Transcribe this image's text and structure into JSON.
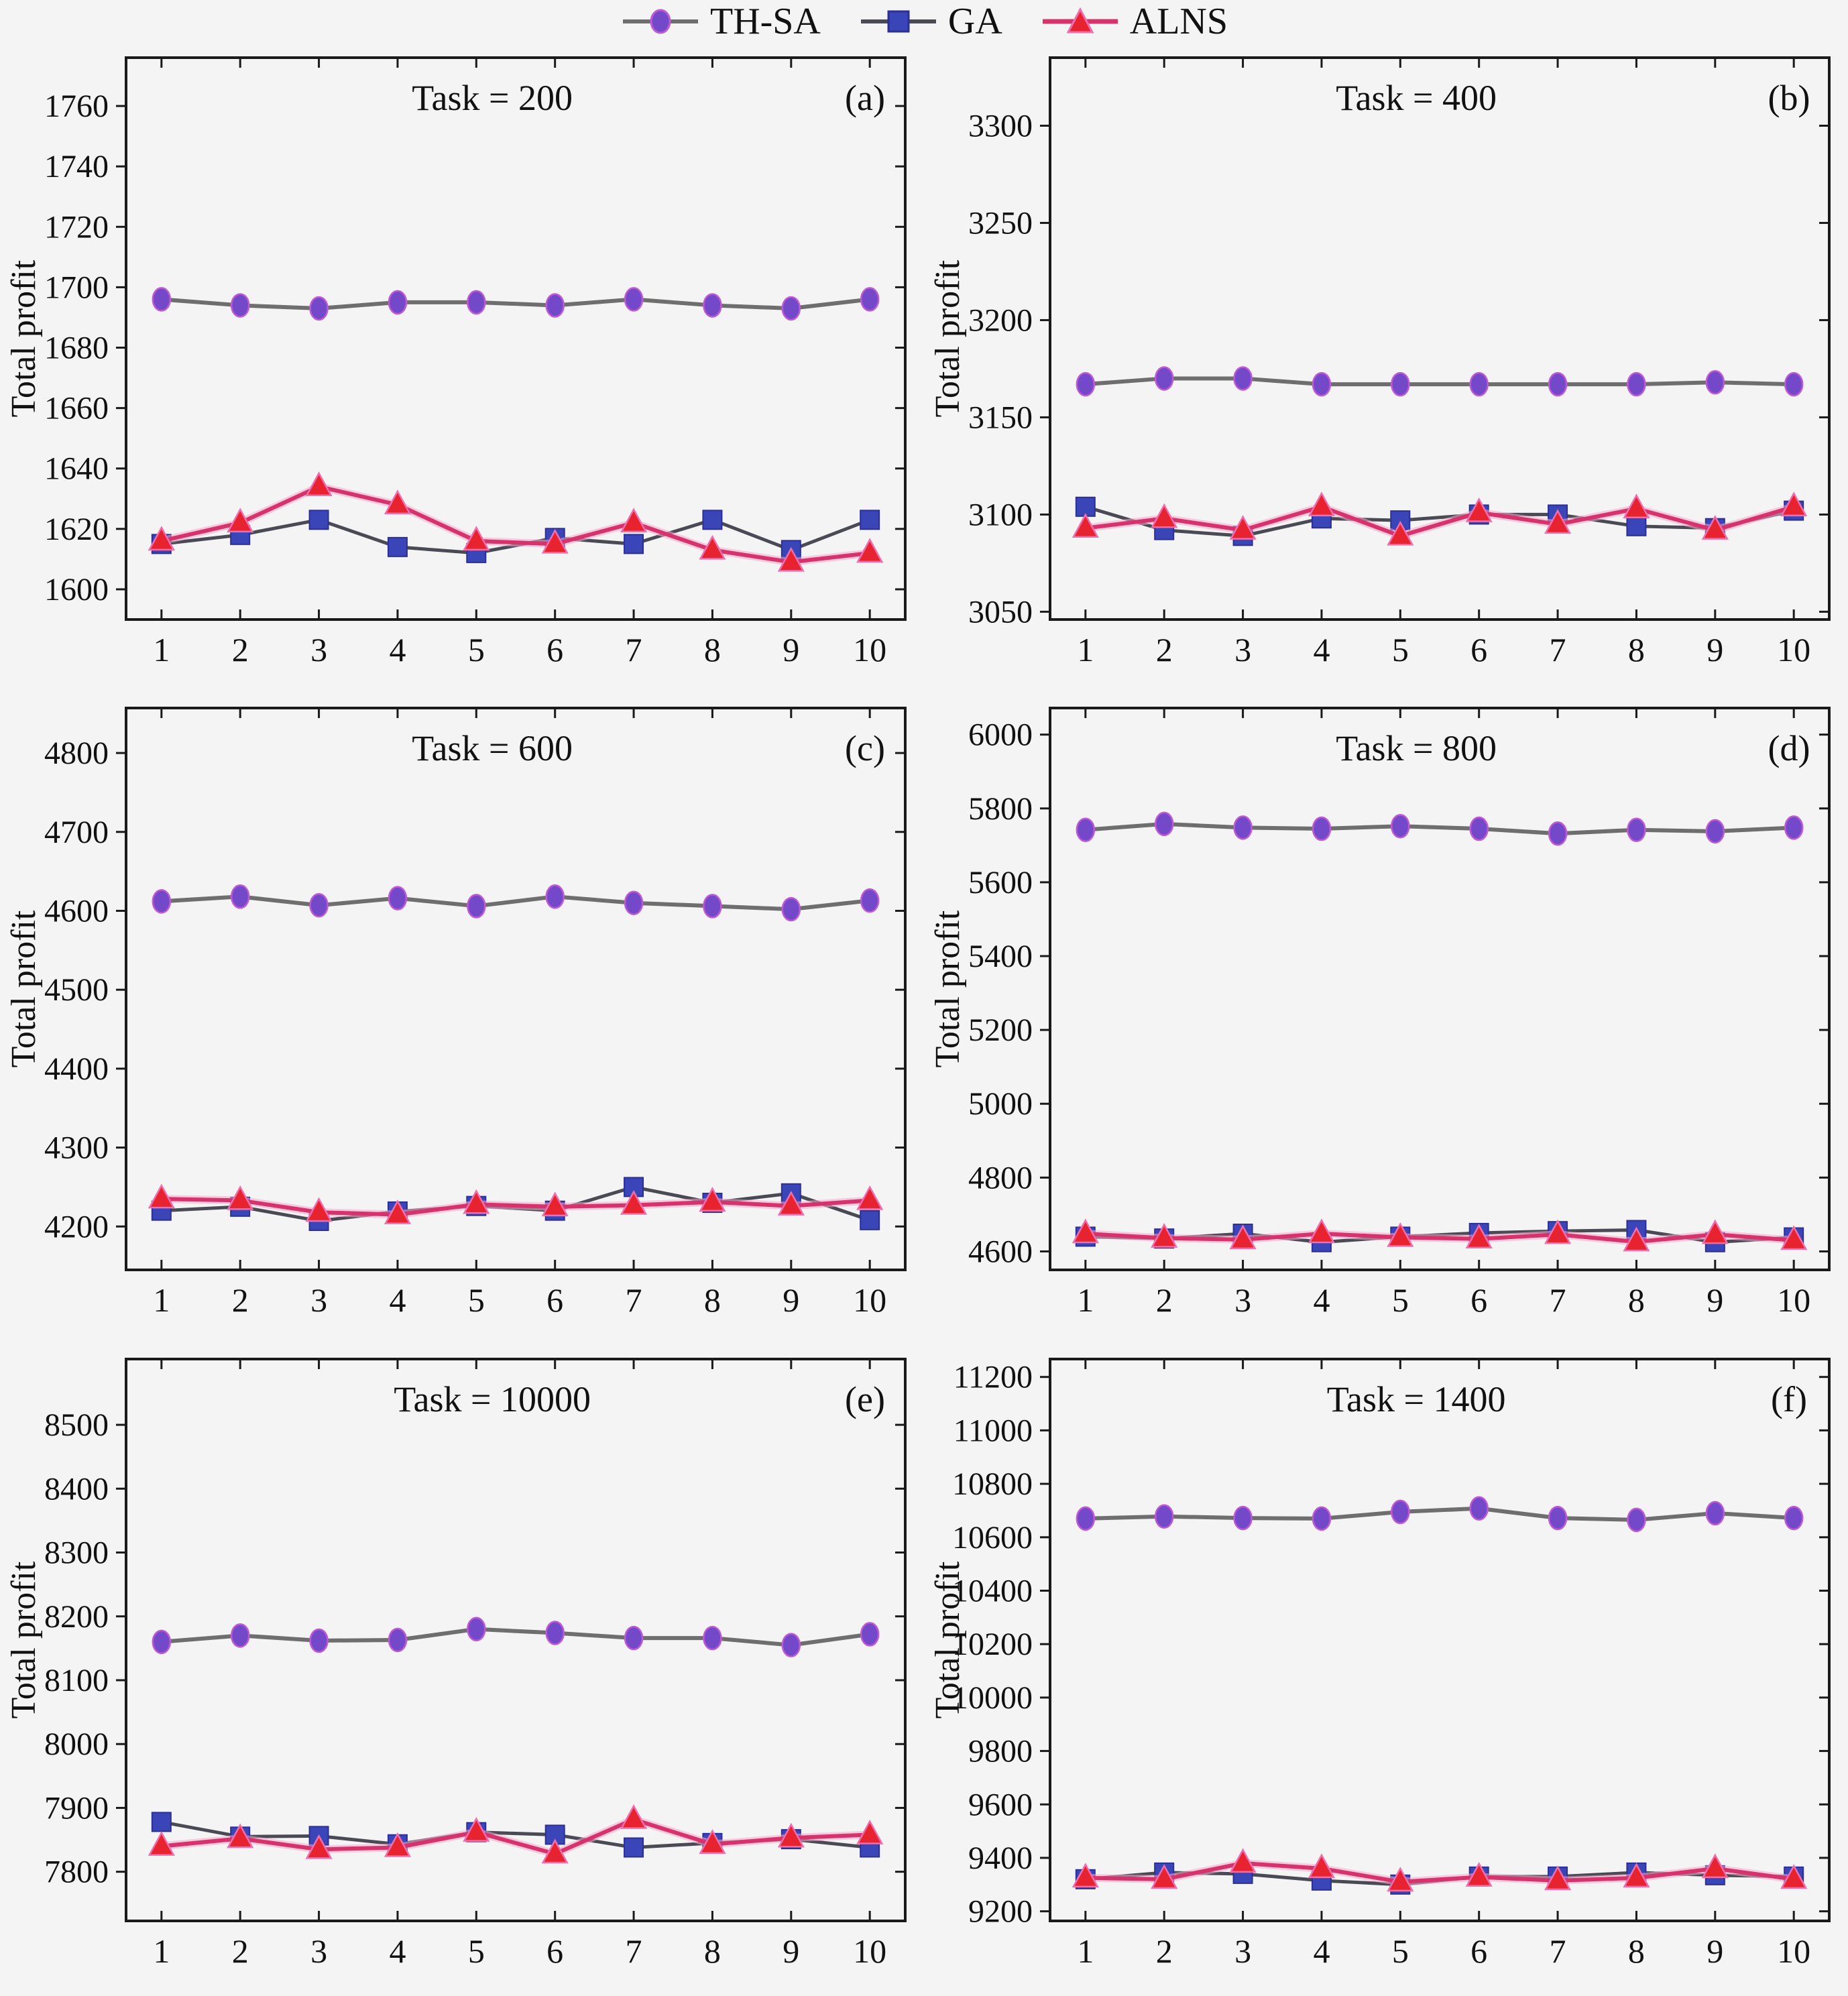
{
  "figure": {
    "background": "#f5f4f5"
  },
  "legend": {
    "items": [
      {
        "label": "TH-SA",
        "marker": "circle"
      },
      {
        "label": "GA",
        "marker": "square"
      },
      {
        "label": "ALNS",
        "marker": "triangle"
      }
    ]
  },
  "colors": {
    "thsa_line": "#6e6e6e",
    "thsa_fill": "#7348c9",
    "thsa_edge": "#c05ad2",
    "ga_line": "#4a4a55",
    "ga_fill": "#3a46b8",
    "ga_edge": "#2b2f96",
    "alns_line": "#d6336c",
    "alns_glow": "#f8a9cc",
    "alns_fill": "#e6232e",
    "alns_edge": "#ef6fae",
    "spine": "#1a1a1a",
    "text": "#111111"
  },
  "chart_data": [
    {
      "type": "line",
      "panel_label": "(a)",
      "title": "Task = 200",
      "ylabel": "Total profit",
      "xlim": [
        0.55,
        10.45
      ],
      "ylim": [
        1590,
        1776
      ],
      "yticks": [
        1600,
        1620,
        1640,
        1660,
        1680,
        1700,
        1720,
        1740,
        1760
      ],
      "xticks": [
        1,
        2,
        3,
        4,
        5,
        6,
        7,
        8,
        9,
        10
      ],
      "x": [
        1,
        2,
        3,
        4,
        5,
        6,
        7,
        8,
        9,
        10
      ],
      "grid": false,
      "series": [
        {
          "name": "TH-SA",
          "marker": "circle",
          "values": [
            1696,
            1694,
            1693,
            1695,
            1695,
            1694,
            1696,
            1694,
            1693,
            1696
          ]
        },
        {
          "name": "GA",
          "marker": "square",
          "values": [
            1615,
            1618,
            1623,
            1614,
            1612,
            1617,
            1615,
            1623,
            1613,
            1623
          ]
        },
        {
          "name": "ALNS",
          "marker": "triangle",
          "values": [
            1616,
            1622,
            1634,
            1628,
            1616,
            1615,
            1622,
            1613,
            1609,
            1612
          ]
        }
      ]
    },
    {
      "type": "line",
      "panel_label": "(b)",
      "title": "Task = 400",
      "ylabel": "Total profit",
      "xlim": [
        0.55,
        10.45
      ],
      "ylim": [
        3046,
        3335
      ],
      "yticks": [
        3050,
        3100,
        3150,
        3200,
        3250,
        3300
      ],
      "xticks": [
        1,
        2,
        3,
        4,
        5,
        6,
        7,
        8,
        9,
        10
      ],
      "x": [
        1,
        2,
        3,
        4,
        5,
        6,
        7,
        8,
        9,
        10
      ],
      "grid": false,
      "series": [
        {
          "name": "TH-SA",
          "marker": "circle",
          "values": [
            3167,
            3170,
            3170,
            3167,
            3167,
            3167,
            3167,
            3167,
            3168,
            3167
          ]
        },
        {
          "name": "GA",
          "marker": "square",
          "values": [
            3104,
            3092,
            3089,
            3098,
            3097,
            3100,
            3100,
            3094,
            3093,
            3102
          ]
        },
        {
          "name": "ALNS",
          "marker": "triangle",
          "values": [
            3093,
            3098,
            3092,
            3104,
            3089,
            3101,
            3095,
            3103,
            3092,
            3104
          ]
        }
      ]
    },
    {
      "type": "line",
      "panel_label": "(c)",
      "title": "Task = 600",
      "ylabel": "Total profit",
      "xlim": [
        0.55,
        10.45
      ],
      "ylim": [
        4145,
        4857
      ],
      "yticks": [
        4200,
        4300,
        4400,
        4500,
        4600,
        4700,
        4800
      ],
      "xticks": [
        1,
        2,
        3,
        4,
        5,
        6,
        7,
        8,
        9,
        10
      ],
      "x": [
        1,
        2,
        3,
        4,
        5,
        6,
        7,
        8,
        9,
        10
      ],
      "grid": false,
      "series": [
        {
          "name": "TH-SA",
          "marker": "circle",
          "values": [
            4612,
            4618,
            4607,
            4616,
            4606,
            4618,
            4610,
            4606,
            4602,
            4613
          ]
        },
        {
          "name": "GA",
          "marker": "square",
          "values": [
            4220,
            4225,
            4207,
            4219,
            4226,
            4220,
            4250,
            4230,
            4242,
            4208
          ]
        },
        {
          "name": "ALNS",
          "marker": "triangle",
          "values": [
            4235,
            4233,
            4218,
            4215,
            4228,
            4225,
            4227,
            4231,
            4226,
            4233
          ]
        }
      ]
    },
    {
      "type": "line",
      "panel_label": "(d)",
      "title": "Task = 800",
      "ylabel": "Total profit",
      "xlim": [
        0.55,
        10.45
      ],
      "ylim": [
        4550,
        6072
      ],
      "yticks": [
        4600,
        4800,
        5000,
        5200,
        5400,
        5600,
        5800,
        6000
      ],
      "xticks": [
        1,
        2,
        3,
        4,
        5,
        6,
        7,
        8,
        9,
        10
      ],
      "x": [
        1,
        2,
        3,
        4,
        5,
        6,
        7,
        8,
        9,
        10
      ],
      "grid": false,
      "series": [
        {
          "name": "TH-SA",
          "marker": "circle",
          "values": [
            5742,
            5758,
            5748,
            5745,
            5752,
            5745,
            5732,
            5742,
            5738,
            5748
          ]
        },
        {
          "name": "GA",
          "marker": "square",
          "values": [
            4640,
            4635,
            4648,
            4625,
            4640,
            4650,
            4655,
            4658,
            4625,
            4638
          ]
        },
        {
          "name": "ALNS",
          "marker": "triangle",
          "values": [
            4648,
            4636,
            4632,
            4648,
            4638,
            4634,
            4646,
            4626,
            4646,
            4630
          ]
        }
      ]
    },
    {
      "type": "line",
      "panel_label": "(e)",
      "title": "Task = 10000",
      "ylabel": "Total profit",
      "xlim": [
        0.55,
        10.45
      ],
      "ylim": [
        7723,
        8603
      ],
      "yticks": [
        7800,
        7900,
        8000,
        8100,
        8200,
        8300,
        8400,
        8500
      ],
      "xticks": [
        1,
        2,
        3,
        4,
        5,
        6,
        7,
        8,
        9,
        10
      ],
      "x": [
        1,
        2,
        3,
        4,
        5,
        6,
        7,
        8,
        9,
        10
      ],
      "grid": false,
      "series": [
        {
          "name": "TH-SA",
          "marker": "circle",
          "values": [
            8160,
            8170,
            8162,
            8163,
            8180,
            8174,
            8166,
            8166,
            8155,
            8172
          ]
        },
        {
          "name": "GA",
          "marker": "square",
          "values": [
            7878,
            7855,
            7856,
            7843,
            7862,
            7858,
            7838,
            7845,
            7851,
            7838
          ]
        },
        {
          "name": "ALNS",
          "marker": "triangle",
          "values": [
            7840,
            7852,
            7835,
            7838,
            7862,
            7828,
            7882,
            7843,
            7853,
            7858
          ]
        }
      ]
    },
    {
      "type": "line",
      "panel_label": "(f)",
      "title": "Task = 1400",
      "ylabel": "Total profit",
      "xlim": [
        0.55,
        10.45
      ],
      "ylim": [
        9164,
        11267
      ],
      "yticks": [
        9200,
        9400,
        9600,
        9800,
        10000,
        10200,
        10400,
        10600,
        10800,
        11000,
        11200
      ],
      "xticks": [
        1,
        2,
        3,
        4,
        5,
        6,
        7,
        8,
        9,
        10
      ],
      "x": [
        1,
        2,
        3,
        4,
        5,
        6,
        7,
        8,
        9,
        10
      ],
      "grid": false,
      "series": [
        {
          "name": "TH-SA",
          "marker": "circle",
          "values": [
            10670,
            10678,
            10672,
            10670,
            10695,
            10708,
            10672,
            10665,
            10690,
            10672
          ]
        },
        {
          "name": "GA",
          "marker": "square",
          "values": [
            9320,
            9345,
            9340,
            9315,
            9300,
            9330,
            9330,
            9345,
            9335,
            9330
          ]
        },
        {
          "name": "ALNS",
          "marker": "triangle",
          "values": [
            9325,
            9320,
            9380,
            9360,
            9310,
            9328,
            9315,
            9325,
            9360,
            9320
          ]
        }
      ]
    }
  ]
}
